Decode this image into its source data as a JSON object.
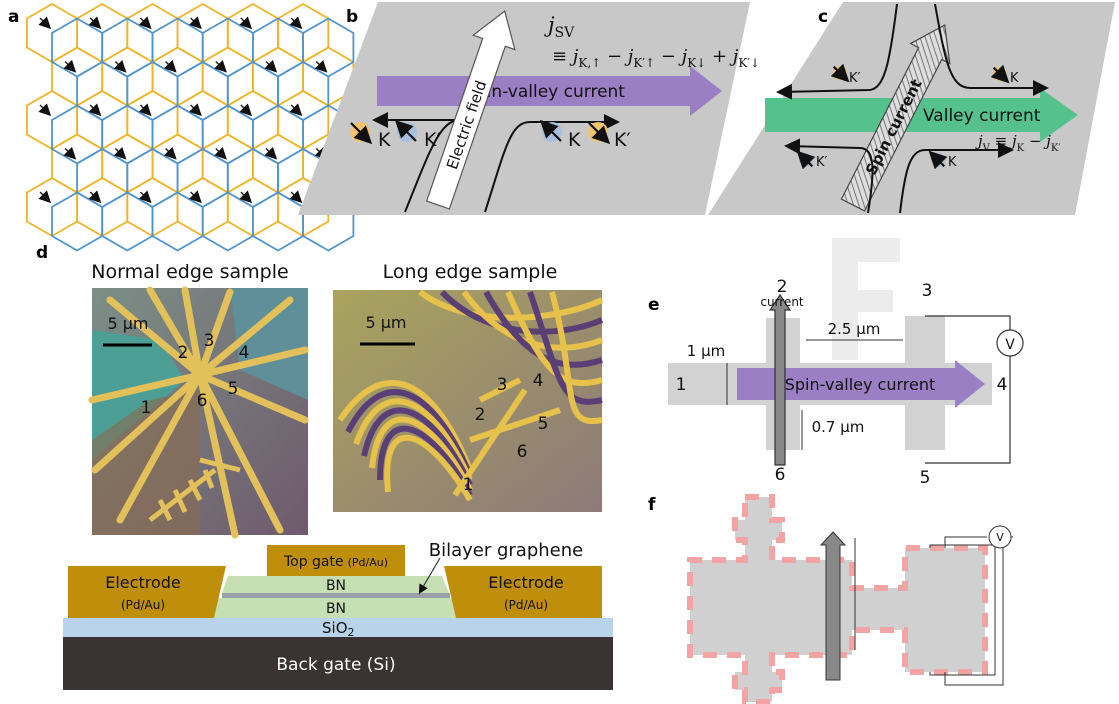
{
  "panels": {
    "a": "a",
    "b": "b",
    "c": "c",
    "d": "d",
    "e": "e",
    "f": "f"
  },
  "panel_b": {
    "jsv": "j",
    "jsv_sub": "SV",
    "equation": [
      "≡ j",
      "K,↑",
      " − j",
      "K′↑",
      " − j",
      "K↓",
      " + j",
      "K′↓"
    ],
    "electric_field": "Electric field",
    "current": "Spin-valley current",
    "valleys": [
      "K",
      "K′",
      "K",
      "K′"
    ]
  },
  "panel_c": {
    "valleys": [
      "K′",
      "K",
      "K′",
      "K"
    ],
    "valley_current": "Valley current",
    "jv": [
      "j",
      "V",
      " ≡ j",
      "K",
      " − j",
      "K′"
    ],
    "spin_current": "Spin current"
  },
  "panel_d": {
    "normal_title": "Normal edge sample",
    "long_title": "Long edge sample",
    "scale_bars": [
      "5 μm",
      "5 μm"
    ],
    "normal_contacts": [
      "1",
      "2",
      "3",
      "4",
      "5",
      "6"
    ],
    "long_contacts": [
      "1",
      "2",
      "3",
      "4",
      "5",
      "6"
    ],
    "stack": {
      "top_gate": "Top gate",
      "top_gate_metal": "(Pd/Au)",
      "bilayer": "Bilayer graphene",
      "electrode_left": "Electrode",
      "metal_left": "(Pd/Au)",
      "electrode_right": "Electrode",
      "metal_right": "(Pd/Au)",
      "bn_top": "BN",
      "bn_bottom": "BN",
      "sio2": [
        "SiO",
        "2"
      ],
      "back_gate": "Back gate (Si)"
    }
  },
  "panel_e": {
    "contacts": [
      "1",
      "2",
      "3",
      "4",
      "5",
      "6"
    ],
    "current": "current",
    "width_label": "1 μm",
    "spacing": "2.5 μm",
    "lead_width": "0.7 μm",
    "current_label": "Spin-valley current",
    "voltmeter": "V"
  },
  "panel_f": {
    "voltmeter": "V"
  }
}
